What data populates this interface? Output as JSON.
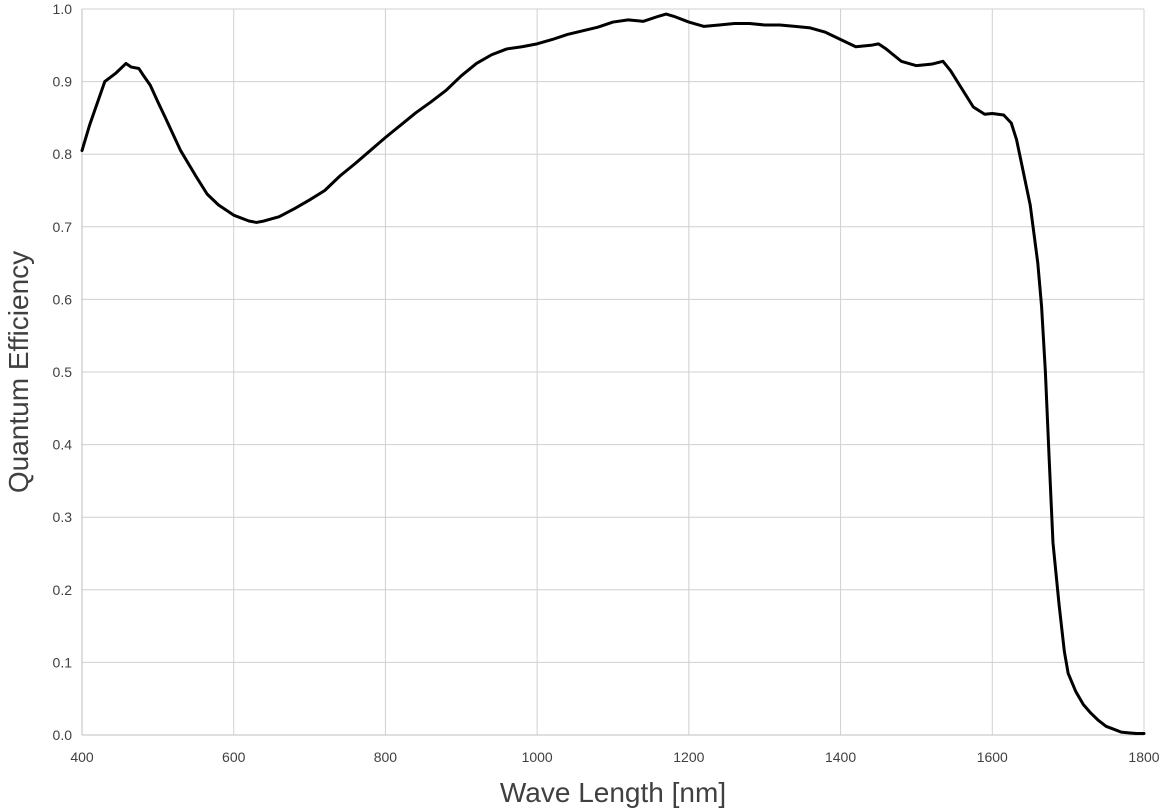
{
  "chart_data": {
    "type": "line",
    "title": "",
    "xlabel": "Wave Length [nm]",
    "ylabel": "Quantum Efficiency",
    "xlim": [
      400,
      1800
    ],
    "ylim": [
      0.0,
      1.0
    ],
    "x_ticks": [
      400,
      600,
      800,
      1000,
      1200,
      1400,
      1600,
      1800
    ],
    "x_tick_labels": [
      "400",
      "600",
      "800",
      "1000",
      "1200",
      "1400",
      "1600",
      "1800"
    ],
    "y_ticks": [
      0.0,
      0.1,
      0.2,
      0.3,
      0.4,
      0.5,
      0.6,
      0.7,
      0.8,
      0.9,
      1.0
    ],
    "y_tick_labels": [
      "0.0",
      "0.1",
      "0.2",
      "0.3",
      "0.4",
      "0.5",
      "0.6",
      "0.7",
      "0.8",
      "0.9",
      "1.0"
    ],
    "grid": true,
    "legend": "none",
    "line_color": "#000000",
    "series": [
      {
        "x": [
          400,
          410,
          430,
          445,
          458,
          465,
          475,
          480,
          490,
          500,
          510,
          530,
          550,
          565,
          580,
          600,
          620,
          630,
          640,
          660,
          680,
          700,
          720,
          740,
          760,
          780,
          800,
          820,
          840,
          860,
          880,
          900,
          920,
          940,
          960,
          980,
          1000,
          1020,
          1040,
          1060,
          1080,
          1100,
          1120,
          1140,
          1160,
          1170,
          1180,
          1200,
          1220,
          1240,
          1260,
          1280,
          1300,
          1320,
          1340,
          1360,
          1380,
          1400,
          1420,
          1440,
          1450,
          1460,
          1480,
          1500,
          1520,
          1535,
          1545,
          1560,
          1575,
          1590,
          1600,
          1615,
          1625,
          1632,
          1640,
          1650,
          1660,
          1665,
          1670,
          1675,
          1680,
          1688,
          1695,
          1700,
          1710,
          1720,
          1730,
          1740,
          1750,
          1760,
          1770,
          1780,
          1790,
          1800
        ],
        "y": [
          0.805,
          0.84,
          0.9,
          0.912,
          0.925,
          0.92,
          0.918,
          0.91,
          0.895,
          0.872,
          0.85,
          0.805,
          0.77,
          0.745,
          0.73,
          0.716,
          0.708,
          0.706,
          0.708,
          0.714,
          0.725,
          0.737,
          0.75,
          0.77,
          0.787,
          0.805,
          0.823,
          0.84,
          0.857,
          0.872,
          0.888,
          0.908,
          0.925,
          0.937,
          0.945,
          0.948,
          0.952,
          0.958,
          0.965,
          0.97,
          0.975,
          0.982,
          0.985,
          0.983,
          0.99,
          0.993,
          0.99,
          0.982,
          0.976,
          0.978,
          0.98,
          0.98,
          0.978,
          0.978,
          0.976,
          0.974,
          0.968,
          0.958,
          0.948,
          0.95,
          0.952,
          0.945,
          0.928,
          0.922,
          0.924,
          0.928,
          0.915,
          0.89,
          0.865,
          0.855,
          0.856,
          0.854,
          0.843,
          0.82,
          0.78,
          0.73,
          0.65,
          0.59,
          0.5,
          0.38,
          0.265,
          0.18,
          0.115,
          0.085,
          0.06,
          0.042,
          0.03,
          0.02,
          0.012,
          0.008,
          0.004,
          0.003,
          0.002,
          0.002
        ]
      }
    ]
  }
}
